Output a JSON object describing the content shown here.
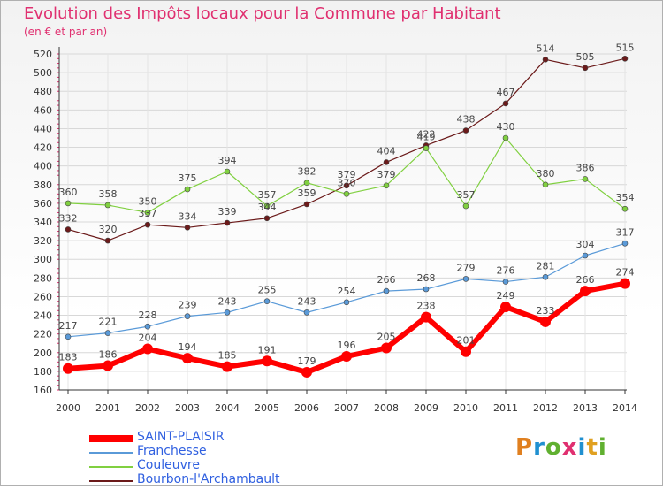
{
  "header": {
    "title": "Evolution des Impôts locaux pour la Commune par Habitant",
    "subtitle": "(en € et par an)"
  },
  "logo": {
    "text": "Proxiti",
    "colors": [
      "#e08020",
      "#2090d0",
      "#60b030",
      "#e03070",
      "#2090d0",
      "#e0a020",
      "#60b030"
    ]
  },
  "chart_data": {
    "type": "line",
    "x": [
      2000,
      2001,
      2002,
      2003,
      2004,
      2005,
      2006,
      2007,
      2008,
      2009,
      2010,
      2011,
      2012,
      2013,
      2014
    ],
    "ylim": [
      160,
      520
    ],
    "yticks": [
      160,
      180,
      200,
      220,
      240,
      260,
      280,
      300,
      320,
      340,
      360,
      380,
      400,
      420,
      440,
      460,
      480,
      500,
      520
    ],
    "grid": true,
    "legend_position": "bottom-left",
    "series": [
      {
        "name": "Bourbon-l'Archambault",
        "color": "#6b1a1a",
        "width": 1.2,
        "marker": 3,
        "values": [
          332,
          320,
          337,
          334,
          339,
          344,
          359,
          379,
          404,
          422,
          438,
          467,
          514,
          505,
          515
        ]
      },
      {
        "name": "Couleuvre",
        "color": "#80d040",
        "width": 1.2,
        "marker": 3,
        "values": [
          360,
          358,
          350,
          375,
          394,
          357,
          382,
          370,
          379,
          419,
          357,
          430,
          380,
          386,
          354
        ]
      },
      {
        "name": "Franchesse",
        "color": "#5a9ad8",
        "width": 1.2,
        "marker": 3,
        "values": [
          217,
          221,
          228,
          239,
          243,
          255,
          243,
          254,
          266,
          268,
          279,
          276,
          281,
          304,
          317
        ]
      },
      {
        "name": "SAINT-PLAISIR",
        "color": "#ff0000",
        "width": 6,
        "marker": 6,
        "values": [
          183,
          186,
          204,
          194,
          185,
          191,
          179,
          196,
          205,
          238,
          201,
          249,
          233,
          266,
          274
        ]
      }
    ]
  }
}
